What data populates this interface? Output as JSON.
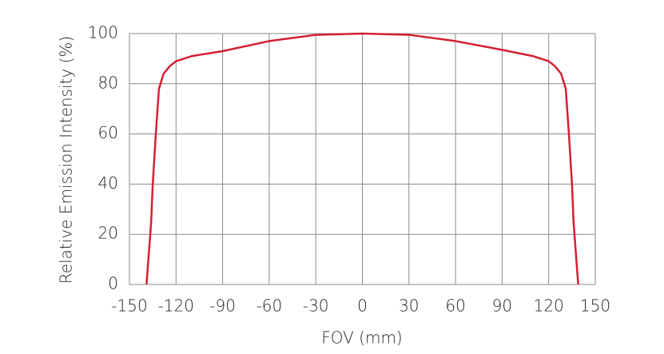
{
  "chart_data": {
    "type": "line",
    "x_label": "FOV (mm)",
    "y_label": "Relative Emission Intensity (%)",
    "x": [
      -139,
      -136,
      -135,
      -133,
      -131,
      -128,
      -124,
      -120,
      -110,
      -90,
      -60,
      -30,
      0,
      30,
      60,
      90,
      110,
      120,
      124,
      128,
      131,
      133,
      135,
      136,
      139
    ],
    "series": [
      {
        "name": "Relative Emission Intensity",
        "color": "#d42030",
        "values": [
          0,
          25,
          40,
          60,
          78,
          84,
          87,
          89,
          91,
          93,
          97,
          99.5,
          100,
          99.5,
          97,
          93.5,
          91,
          89,
          87,
          84,
          78,
          60,
          40,
          25,
          0
        ]
      }
    ],
    "xlim": [
      -150,
      150
    ],
    "xticks": [
      -150,
      -120,
      -90,
      -60,
      -30,
      0,
      30,
      60,
      90,
      120,
      150
    ],
    "ylim": [
      0,
      100
    ],
    "yticks": [
      0,
      20,
      40,
      60,
      80,
      100
    ],
    "grid": true
  }
}
